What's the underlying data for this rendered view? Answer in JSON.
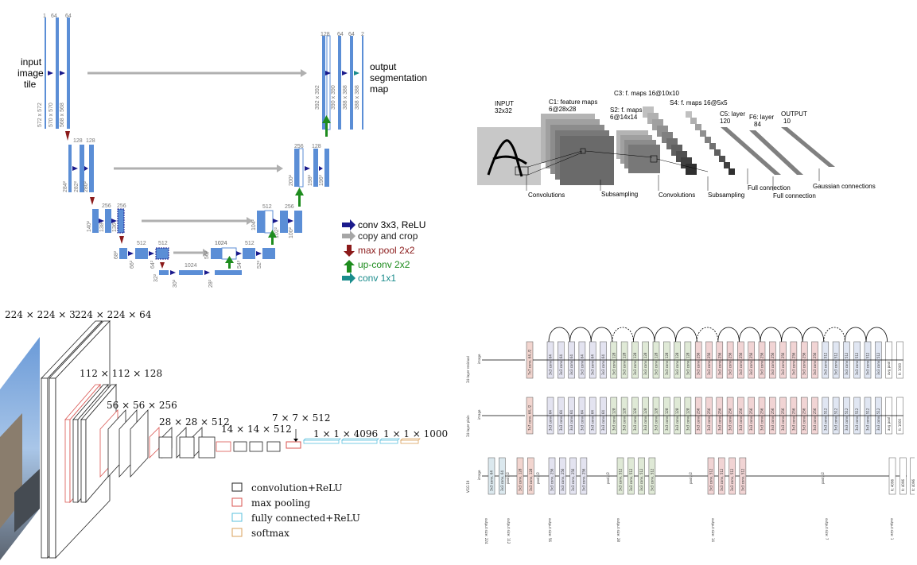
{
  "unet": {
    "input_label": [
      "input",
      "image",
      "tile"
    ],
    "output_label": [
      "output",
      "segmentation",
      "map"
    ],
    "ch_top_left": [
      "1",
      "64",
      "64"
    ],
    "ch_top_right": [
      "128",
      "64",
      "64",
      "2"
    ],
    "ch_l2": [
      "128",
      "128"
    ],
    "ch_l3": [
      "256",
      "256"
    ],
    "ch_l4": [
      "512",
      "512"
    ],
    "ch_l5": [
      "1024",
      "1024"
    ],
    "ch_r4": [
      "1024",
      "512"
    ],
    "ch_r3": [
      "512",
      "256"
    ],
    "ch_r2": [
      "256",
      "128"
    ],
    "dims_l1": [
      "572 x 572",
      "570 x 570",
      "568 x 568"
    ],
    "dims_r1": [
      "392 x 392",
      "390 x 390",
      "388 x 388",
      "388 x 388"
    ],
    "dims_l2": [
      "284²",
      "282²",
      "280²"
    ],
    "dims_r2": [
      "200²",
      "198²",
      "196²"
    ],
    "dims_l3": [
      "140²",
      "138²",
      "136²"
    ],
    "dims_r3": [
      "104²",
      "102²",
      "100²"
    ],
    "dims_l4": [
      "68²",
      "66²",
      "64²"
    ],
    "dims_r4": [
      "56²",
      "54²",
      "52²"
    ],
    "dims_l5": [
      "32²",
      "30²",
      "28²"
    ],
    "legend": [
      {
        "label": "conv 3x3, ReLU",
        "color": "#1a1a8c"
      },
      {
        "label": "copy and crop",
        "color": "#a6a6a6"
      },
      {
        "label": "max pool 2x2",
        "color": "#8b1a1a"
      },
      {
        "label": "up-conv 2x2",
        "color": "#1e8c1e"
      },
      {
        "label": "conv 1x1",
        "color": "#1a8c8c"
      }
    ]
  },
  "lenet": {
    "input": [
      "INPUT",
      "32x32"
    ],
    "c1": [
      "C1: feature maps",
      "6@28x28"
    ],
    "s2": [
      "S2: f. maps",
      "6@14x14"
    ],
    "c3": "C3: f. maps 16@10x10",
    "s4": "S4: f. maps 16@5x5",
    "c5": [
      "C5: layer",
      "120"
    ],
    "f6": [
      "F6: layer",
      "84"
    ],
    "output": [
      "OUTPUT",
      "10"
    ],
    "bottom_labels": [
      "Convolutions",
      "Subsampling",
      "Convolutions",
      "Subsampling",
      "Full connection",
      "Full connection",
      "Gaussian connections"
    ]
  },
  "vgg": {
    "dims": [
      "224 × 224 × 3",
      "224 × 224 × 64",
      "112 × 112 × 128",
      "56 × 56 × 256",
      "28 × 28 × 512",
      "14 × 14 × 512",
      "7 × 7 × 512",
      "1 × 1 × 4096",
      "1 × 1 × 1000"
    ],
    "legend": [
      {
        "label": "convolution+ReLU",
        "color": "#222222"
      },
      {
        "label": "max pooling",
        "color": "#d9534f"
      },
      {
        "label": "fully connected+ReLU",
        "color": "#5bc0de"
      },
      {
        "label": "softmax",
        "color": "#d9a05b"
      }
    ]
  },
  "resnet": {
    "row_labels": [
      "34-layer residual",
      "34-layer plain",
      "VGG-19"
    ],
    "image_label": "image",
    "block_text": [
      "7x7 conv, 64, /2",
      "pool, /2",
      "3x3 conv, 64",
      "3x3 conv, 128",
      "3x3 conv, 256",
      "3x3 conv, 512",
      "avg pool",
      "fc 1000",
      "fc 4096"
    ],
    "output_sizes": [
      "output size: 224",
      "output size: 112",
      "output size: 56",
      "output size: 28",
      "output size: 14",
      "output size: 7",
      "output size: 1"
    ]
  }
}
